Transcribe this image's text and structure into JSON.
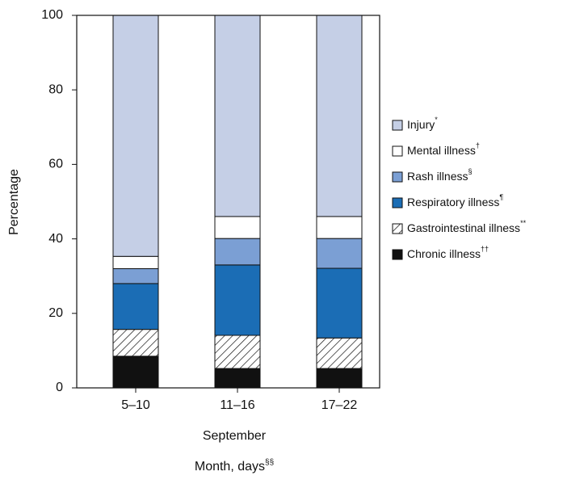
{
  "chart_data": {
    "type": "stacked_bar",
    "y_label": "Percentage",
    "x_label": {
      "text": "Month, days",
      "mark": "§§"
    },
    "x_group_label": "September",
    "categories": [
      "5–10",
      "11–16",
      "17–22"
    ],
    "series": [
      {
        "name": "Chronic illness",
        "mark": "††",
        "color": "#111111",
        "values": [
          8.5,
          5.2,
          5.2
        ]
      },
      {
        "name": "Gastrointestinal illness",
        "mark": "**",
        "color": "hatch",
        "values": [
          7.2,
          8.9,
          8.2
        ]
      },
      {
        "name": "Respiratory illness",
        "mark": "¶",
        "color": "#1b6db5",
        "values": [
          12.3,
          18.9,
          18.7
        ]
      },
      {
        "name": "Rash illness",
        "mark": "§",
        "color": "#7b9fd4",
        "values": [
          4.0,
          7.1,
          8.0
        ]
      },
      {
        "name": "Mental illness",
        "mark": "†",
        "color": "#ffffff",
        "values": [
          3.3,
          5.9,
          5.9
        ]
      },
      {
        "name": "Injury",
        "mark": "*",
        "color": "#c5cfe6",
        "values": [
          64.7,
          54.0,
          54.0
        ]
      }
    ],
    "ylim": [
      0,
      100
    ],
    "yticks": [
      0,
      20,
      40,
      60,
      80,
      100
    ],
    "grid": false,
    "legend": "right"
  }
}
